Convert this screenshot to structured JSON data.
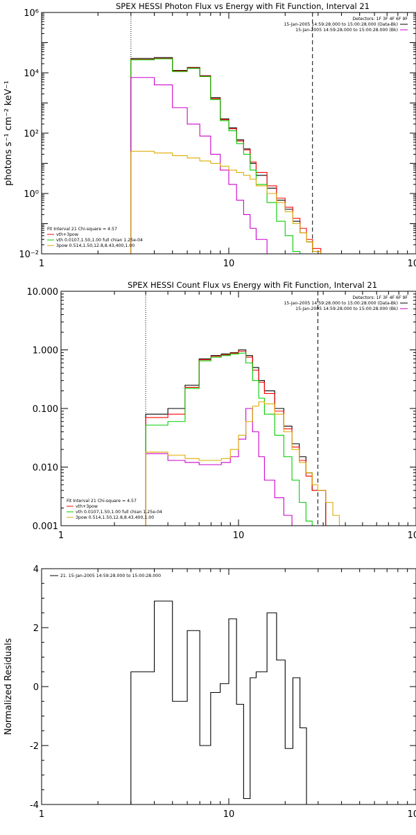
{
  "chart_data": [
    {
      "type": "line",
      "title": "SPEX HESSI Photon Flux vs Energy with Fit Function, Interval 21",
      "ylabel": "photons s⁻¹ cm⁻² keV⁻¹",
      "xlabel": "",
      "xscale": "log",
      "yscale": "log",
      "xlim": [
        1,
        100
      ],
      "ylim": [
        0.01,
        1000000
      ],
      "x_ticks": [
        {
          "v": 1,
          "t": "1"
        },
        {
          "v": 10,
          "t": "10"
        },
        {
          "v": 100,
          "t": "100"
        }
      ],
      "y_ticks": [
        {
          "v": 0.01,
          "t": "10⁻²"
        },
        {
          "v": 1,
          "t": "10⁰"
        },
        {
          "v": 100,
          "t": "10²"
        },
        {
          "v": 10000,
          "t": "10⁴"
        },
        {
          "v": 1000000,
          "t": "10⁶"
        }
      ],
      "vlines": [
        {
          "x": 3,
          "style": "dotted"
        },
        {
          "x": 28,
          "style": "dashed"
        }
      ],
      "edges": [
        3,
        4,
        5,
        6,
        7,
        8,
        9,
        10,
        11,
        12,
        13,
        14,
        16,
        18,
        20,
        22,
        24,
        26,
        28,
        31,
        34,
        37,
        40
      ],
      "series": [
        {
          "name": "",
          "color": "#000000",
          "values": [
            30000,
            32000,
            12000,
            15000,
            8000,
            1500,
            300,
            150,
            60,
            30,
            10,
            4,
            1.5,
            0.6,
            0.3,
            0.12,
            0.05,
            0.025,
            0.012,
            null,
            null,
            null
          ]
        },
        {
          "name": "vth+3pow",
          "color": "#ff0000",
          "values": [
            28000,
            30000,
            11500,
            14500,
            7800,
            1400,
            280,
            140,
            55,
            28,
            11,
            5,
            1.8,
            0.7,
            0.35,
            0.15,
            0.07,
            0.03,
            0.015,
            null,
            null,
            null
          ]
        },
        {
          "name": "vth 0.0107,1.50,1.00  full chian 1.25e-04",
          "color": "#00cc00",
          "values": [
            27000,
            29000,
            11000,
            14000,
            7500,
            1300,
            260,
            120,
            45,
            20,
            6,
            2,
            0.5,
            0.12,
            0.04,
            0.012,
            null,
            null,
            null,
            null,
            null,
            null
          ]
        },
        {
          "name": "",
          "color": "#cc00cc",
          "values": [
            7000,
            4000,
            700,
            200,
            80,
            20,
            6,
            2,
            0.6,
            0.2,
            0.07,
            0.03,
            null,
            null,
            null,
            null,
            null,
            null,
            null,
            null,
            null,
            null
          ]
        },
        {
          "name": "3pow 0.514,1.50,12.8,8.43,400,1.00",
          "color": "#ddaa00",
          "values": [
            25,
            22,
            18,
            15,
            12,
            10,
            8,
            6,
            5,
            4,
            3,
            1.8,
            1,
            0.5,
            0.25,
            0.1,
            0.05,
            0.025,
            0.012,
            null,
            null,
            null
          ]
        }
      ],
      "legend_top": [
        {
          "text": "Detectors: 1F 3F 4F 6F 9F",
          "color": "#000000",
          "line": false
        },
        {
          "text": "15-Jan-2005 14:59:28.000 to 15:00:28.000 (Data-Bk)",
          "color": "#000000",
          "line": true
        },
        {
          "text": "15-Jan-2005 14:59:28.000 to 15:00:28.000 (Bk)",
          "color": "#cc00cc",
          "line": true
        }
      ],
      "legend_bottom": [
        {
          "text": "Fit Interval 21   Chi-square = 4.57",
          "color": "#000000",
          "line": false
        },
        {
          "text": "vth+3pow",
          "color": "#ff0000",
          "line": true
        },
        {
          "text": "vth 0.0107,1.50,1.00  full chian 1.25e-04",
          "color": "#00cc00",
          "line": true
        },
        {
          "text": "3pow 0.514,1.50,12.8,8.43,400,1.00",
          "color": "#ddaa00",
          "line": true
        }
      ]
    },
    {
      "type": "line",
      "title": "SPEX HESSI Count Flux vs Energy with Fit Function, Interval 21",
      "ylabel": "",
      "xlabel": "",
      "xscale": "log",
      "yscale": "log",
      "xlim": [
        1,
        100
      ],
      "ylim": [
        0.001,
        10
      ],
      "x_ticks": [
        {
          "v": 1,
          "t": "1"
        },
        {
          "v": 10,
          "t": "10"
        },
        {
          "v": 100,
          "t": "100"
        }
      ],
      "y_ticks": [
        {
          "v": 0.001,
          "t": "0.001"
        },
        {
          "v": 0.01,
          "t": "0.010"
        },
        {
          "v": 0.1,
          "t": "0.100"
        },
        {
          "v": 1,
          "t": "1.000"
        },
        {
          "v": 10,
          "t": "10.000"
        }
      ],
      "vlines": [
        {
          "x": 3,
          "style": "dotted"
        },
        {
          "x": 28,
          "style": "dashed"
        }
      ],
      "edges": [
        3,
        4,
        5,
        6,
        7,
        8,
        9,
        10,
        11,
        12,
        13,
        14,
        16,
        18,
        20,
        22,
        24,
        26,
        28,
        31,
        34,
        37,
        40
      ],
      "series": [
        {
          "name": "",
          "color": "#000000",
          "values": [
            0.08,
            0.1,
            0.25,
            0.7,
            0.8,
            0.85,
            0.9,
            1.0,
            0.8,
            0.5,
            0.3,
            0.2,
            0.1,
            0.05,
            0.025,
            0.015,
            0.008,
            0.004,
            0.004,
            null,
            null,
            null
          ]
        },
        {
          "name": "vth+3pow",
          "color": "#ff0000",
          "values": [
            0.07,
            0.08,
            0.23,
            0.68,
            0.78,
            0.82,
            0.88,
            0.95,
            0.75,
            0.45,
            0.28,
            0.18,
            0.09,
            0.045,
            0.022,
            0.013,
            0.007,
            0.004,
            0.004,
            null,
            null,
            null
          ]
        },
        {
          "name": "vth 0.0107,1.50,1.00  full chian 1.25e-04",
          "color": "#00cc00",
          "values": [
            0.052,
            0.06,
            0.22,
            0.65,
            0.75,
            0.8,
            0.85,
            0.88,
            0.6,
            0.3,
            0.15,
            0.08,
            0.035,
            0.015,
            0.006,
            0.0025,
            0.0012,
            null,
            null,
            null,
            null,
            null
          ]
        },
        {
          "name": "",
          "color": "#cc00cc",
          "values": [
            0.017,
            0.013,
            0.012,
            0.011,
            0.011,
            0.012,
            0.015,
            0.03,
            0.1,
            0.04,
            0.015,
            0.006,
            0.003,
            0.0015,
            null,
            null,
            null,
            null,
            null,
            null,
            null,
            null
          ]
        },
        {
          "name": "3pow 0.514,1.50,12.8,8.43,400,1.00",
          "color": "#ddaa00",
          "values": [
            0.018,
            0.016,
            0.014,
            0.013,
            0.013,
            0.014,
            0.02,
            0.035,
            0.06,
            0.11,
            0.13,
            0.12,
            0.08,
            0.04,
            0.02,
            0.012,
            0.008,
            0.005,
            0.004,
            0.0025,
            0.0015,
            null
          ]
        }
      ],
      "legend_top": [
        {
          "text": "Detectors: 1F 3F 4F 6F 9F",
          "color": "#000000",
          "line": false
        },
        {
          "text": "15-Jan-2005 14:59:28.000 to 15:00:28.000 (Data-Bk)",
          "color": "#000000",
          "line": true
        },
        {
          "text": "15-Jan-2005 14:59:28.000 to 15:00:28.000 (Bk)",
          "color": "#cc00cc",
          "line": true
        }
      ],
      "legend_bottom": [
        {
          "text": "Fit Interval 21   Chi-square = 4.57",
          "color": "#000000",
          "line": false
        },
        {
          "text": "vth+3pow",
          "color": "#ff0000",
          "line": true
        },
        {
          "text": "vth 0.0107,1.50,1.00  full chian 1.25e-04",
          "color": "#00cc00",
          "line": true
        },
        {
          "text": "3pow 0.514,1.50,12.8,8.43,400,1.00",
          "color": "#ddaa00",
          "line": true
        }
      ]
    },
    {
      "type": "line",
      "title": "",
      "ylabel": "Normalized Residuals",
      "xlabel": "",
      "xscale": "log",
      "yscale": "linear",
      "xlim": [
        1,
        100
      ],
      "ylim": [
        -4,
        4
      ],
      "x_ticks": [
        {
          "v": 1,
          "t": "1"
        },
        {
          "v": 10,
          "t": "10"
        },
        {
          "v": 100,
          "t": "100"
        }
      ],
      "y_ticks": [
        {
          "v": -4,
          "t": "-4"
        },
        {
          "v": -2,
          "t": "-2"
        },
        {
          "v": 0,
          "t": "0"
        },
        {
          "v": 2,
          "t": "2"
        },
        {
          "v": 4,
          "t": "4"
        }
      ],
      "vlines": [],
      "edges": [
        3,
        4,
        5,
        6,
        7,
        8,
        9,
        10,
        11,
        12,
        13,
        14,
        16,
        18,
        20,
        22,
        24,
        26,
        28
      ],
      "drop_to_floor": true,
      "series": [
        {
          "name": "21. 15-Jan-2005 14:59:28.000 to 15:00:28.000",
          "color": "#000000",
          "values": [
            0.5,
            2.9,
            -0.5,
            1.9,
            -2.0,
            -0.2,
            0.1,
            2.3,
            -0.6,
            -3.8,
            0.3,
            0.5,
            2.5,
            0.9,
            -2.1,
            0.3,
            -1.4,
            -4.0
          ]
        }
      ],
      "legend_top": [
        {
          "text": "21. 15-Jan-2005 14:59:28.000 to 15:00:28.000",
          "color": "#000000",
          "line": true
        }
      ],
      "legend_bottom": []
    }
  ]
}
